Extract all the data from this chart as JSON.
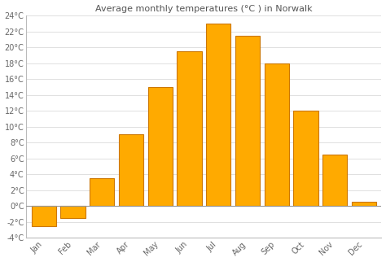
{
  "months": [
    "Jan",
    "Feb",
    "Mar",
    "Apr",
    "May",
    "Jun",
    "Jul",
    "Aug",
    "Sep",
    "Oct",
    "Nov",
    "Dec"
  ],
  "values": [
    -2.5,
    -1.5,
    3.5,
    9.0,
    15.0,
    19.5,
    23.0,
    21.5,
    18.0,
    12.0,
    6.5,
    0.5
  ],
  "bar_color": "#FFAA00",
  "bar_edge_color": "#CC7700",
  "title": "Average monthly temperatures (°C ) in Norwalk",
  "ylim": [
    -4,
    24
  ],
  "yticks": [
    -4,
    -2,
    0,
    2,
    4,
    6,
    8,
    10,
    12,
    14,
    16,
    18,
    20,
    22,
    24
  ],
  "ytick_labels": [
    "-4°C",
    "-2°C",
    "0°C",
    "2°C",
    "4°C",
    "6°C",
    "8°C",
    "10°C",
    "12°C",
    "14°C",
    "16°C",
    "18°C",
    "20°C",
    "22°C",
    "24°C"
  ],
  "background_color": "#ffffff",
  "grid_color": "#e0e0e0",
  "title_fontsize": 8,
  "tick_fontsize": 7,
  "bar_width": 0.85
}
